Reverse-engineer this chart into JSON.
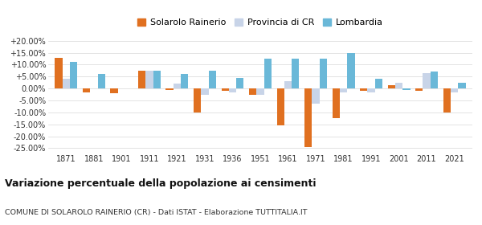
{
  "years": [
    1871,
    1881,
    1901,
    1911,
    1921,
    1931,
    1936,
    1951,
    1961,
    1971,
    1981,
    1991,
    2001,
    2011,
    2021
  ],
  "solarolo": [
    12.8,
    -1.5,
    -2.0,
    7.5,
    -0.5,
    -10.0,
    -1.0,
    -2.5,
    -15.5,
    -24.5,
    -12.5,
    -1.0,
    1.5,
    -1.0,
    -10.0
  ],
  "provincia": [
    4.0,
    null,
    null,
    7.5,
    2.0,
    -2.5,
    -1.5,
    -2.5,
    3.0,
    -6.5,
    -1.5,
    -1.5,
    2.5,
    6.5,
    -1.5
  ],
  "lombardia": [
    11.0,
    6.0,
    null,
    7.5,
    6.0,
    7.5,
    4.5,
    12.5,
    12.5,
    12.5,
    15.0,
    4.0,
    -0.5,
    7.0,
    2.5
  ],
  "color_solarolo": "#e07020",
  "color_provincia": "#c8d4e8",
  "color_lombardia": "#6ab8d8",
  "title": "Variazione percentuale della popolazione ai censimenti",
  "subtitle": "COMUNE DI SOLAROLO RAINERIO (CR) - Dati ISTAT - Elaborazione TUTTITALIA.IT",
  "legend_labels": [
    "Solarolo Rainerio",
    "Provincia di CR",
    "Lombardia"
  ],
  "ylim": [
    -27,
    22
  ],
  "yticks": [
    -25,
    -20,
    -15,
    -10,
    -5,
    0,
    5,
    10,
    15,
    20
  ],
  "ytick_labels": [
    "-25.00%",
    "-20.00%",
    "-15.00%",
    "-10.00%",
    "-5.00%",
    "0.00%",
    "+5.00%",
    "+10.00%",
    "+15.00%",
    "+20.00%"
  ],
  "bar_width": 0.27,
  "figsize": [
    6.0,
    2.8
  ],
  "dpi": 100
}
